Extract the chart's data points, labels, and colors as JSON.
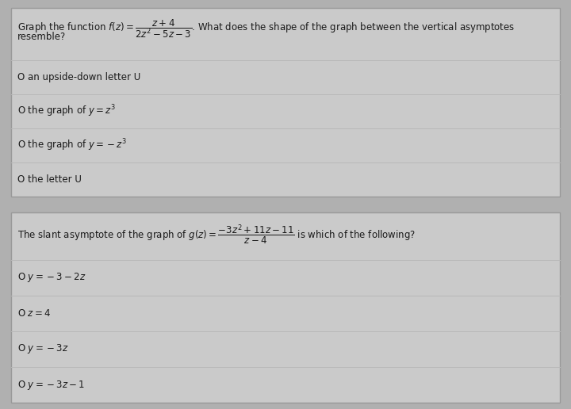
{
  "bg_color": "#b0b0b0",
  "box_bg": "#cacaca",
  "box_border": "#999999",
  "grid_line_color": "#b8b8b8",
  "text_color": "#1a1a1a",
  "q1_line1": "Graph the function $f(z) = \\dfrac{z+4}{2z^2-5z-3}$. What does the shape of the graph between the vertical asymptotes",
  "q1_line2": "resemble?",
  "q1_options": [
    "O an upside-down letter U",
    "O the graph of $y = z^3$",
    "O the graph of $y = -z^3$",
    "O the letter U"
  ],
  "q2_line1": "The slant asymptote of the graph of $g(z) = \\dfrac{-3z^2+11z-11}{z-4}$ is which of the following?",
  "q2_options": [
    "O $y = -3 - 2z$",
    "O $z = 4$",
    "O $y = -3z$",
    "O $y = -3z - 1$"
  ],
  "fig_width": 7.2,
  "fig_height": 5.16,
  "dpi": 100
}
